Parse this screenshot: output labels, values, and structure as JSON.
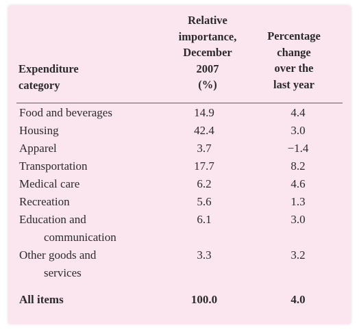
{
  "headers": {
    "category": [
      "Expenditure",
      "category"
    ],
    "relative": [
      "Relative",
      "importance,",
      "December",
      "2007",
      "(%)"
    ],
    "percent": [
      "Percentage",
      "change",
      "over the",
      "last year"
    ]
  },
  "rows": [
    {
      "label": "Food and beverages",
      "cont": "",
      "relative": "14.9",
      "change": "4.4"
    },
    {
      "label": "Housing",
      "cont": "",
      "relative": "42.4",
      "change": "3.0"
    },
    {
      "label": "Apparel",
      "cont": "",
      "relative": "3.7",
      "change": "−1.4"
    },
    {
      "label": "Transportation",
      "cont": "",
      "relative": "17.7",
      "change": "8.2"
    },
    {
      "label": "Medical care",
      "cont": "",
      "relative": "6.2",
      "change": "4.6"
    },
    {
      "label": "Recreation",
      "cont": "",
      "relative": "5.6",
      "change": "1.3"
    },
    {
      "label": "Education and",
      "cont": "communication",
      "relative": "6.1",
      "change": "3.0"
    },
    {
      "label": "Other goods and",
      "cont": "services",
      "relative": "3.3",
      "change": "3.2"
    }
  ],
  "total": {
    "label": "All items",
    "relative": "100.0",
    "change": "4.0"
  }
}
